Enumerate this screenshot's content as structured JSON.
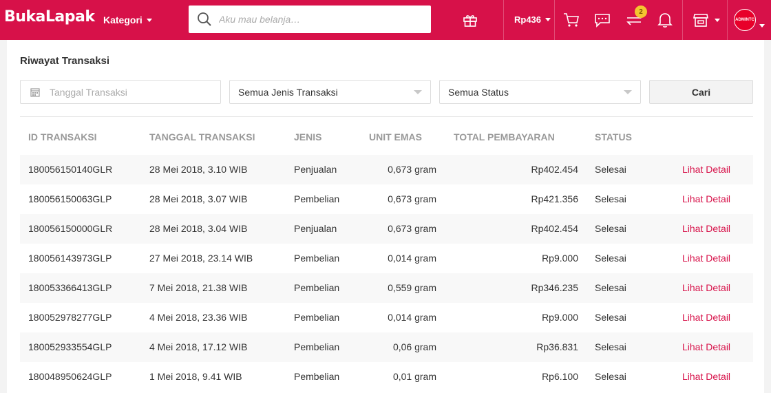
{
  "header": {
    "logo": "BukaLapak",
    "kategori_label": "Kategori",
    "search_placeholder": "Aku mau belanja…",
    "balance": "Rp436",
    "notification_badge": "2",
    "avatar_text": "ADMINTC",
    "brand_color": "#d71149"
  },
  "page": {
    "title": "Riwayat Transaksi"
  },
  "filters": {
    "date_placeholder": "Tanggal Transaksi",
    "type_value": "Semua Jenis Transaksi",
    "status_value": "Semua Status",
    "search_button": "Cari"
  },
  "table": {
    "columns": [
      "ID TRANSAKSI",
      "TANGGAL TRANSAKSI",
      "JENIS",
      "UNIT EMAS",
      "TOTAL PEMBAYARAN",
      "STATUS"
    ],
    "rows": [
      {
        "id": "180056150140GLR",
        "date": "28 Mei 2018, 3.10 WIB",
        "jenis": "Penjualan",
        "unit": "0,673 gram",
        "total": "Rp402.454",
        "status": "Selesai",
        "action": "Lihat Detail"
      },
      {
        "id": "180056150063GLP",
        "date": "28 Mei 2018, 3.07 WIB",
        "jenis": "Pembelian",
        "unit": "0,673 gram",
        "total": "Rp421.356",
        "status": "Selesai",
        "action": "Lihat Detail"
      },
      {
        "id": "180056150000GLR",
        "date": "28 Mei 2018, 3.04 WIB",
        "jenis": "Penjualan",
        "unit": "0,673 gram",
        "total": "Rp402.454",
        "status": "Selesai",
        "action": "Lihat Detail"
      },
      {
        "id": "180056143973GLP",
        "date": "27 Mei 2018, 23.14 WIB",
        "jenis": "Pembelian",
        "unit": "0,014 gram",
        "total": "Rp9.000",
        "status": "Selesai",
        "action": "Lihat Detail"
      },
      {
        "id": "180053366413GLP",
        "date": "7 Mei 2018, 21.38 WIB",
        "jenis": "Pembelian",
        "unit": "0,559 gram",
        "total": "Rp346.235",
        "status": "Selesai",
        "action": "Lihat Detail"
      },
      {
        "id": "180052978277GLP",
        "date": "4 Mei 2018, 23.36 WIB",
        "jenis": "Pembelian",
        "unit": "0,014 gram",
        "total": "Rp9.000",
        "status": "Selesai",
        "action": "Lihat Detail"
      },
      {
        "id": "180052933554GLP",
        "date": "4 Mei 2018, 17.12 WIB",
        "jenis": "Pembelian",
        "unit": "0,06 gram",
        "total": "Rp36.831",
        "status": "Selesai",
        "action": "Lihat Detail"
      },
      {
        "id": "180048950624GLP",
        "date": "1 Mei 2018, 9.41 WIB",
        "jenis": "Pembelian",
        "unit": "0,01 gram",
        "total": "Rp6.100",
        "status": "Selesai",
        "action": "Lihat Detail"
      }
    ]
  }
}
